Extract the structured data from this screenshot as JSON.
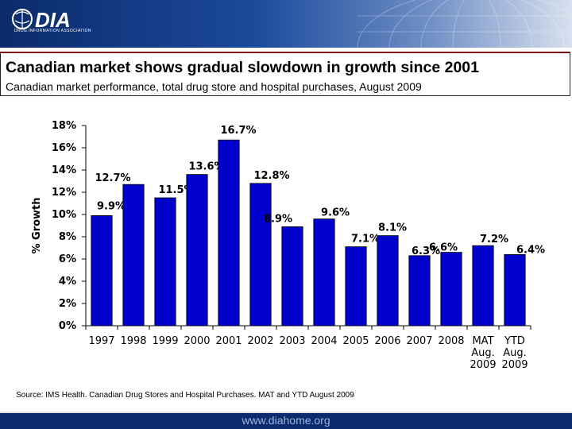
{
  "header": {
    "logo_text": "DIA",
    "logo_subtitle": "DRUG INFORMATION ASSOCIATION"
  },
  "title": "Canadian market shows gradual slowdown in growth since 2001",
  "subtitle": "Canadian market performance, total drug store and hospital purchases, August 2009",
  "source": "Source: IMS Health. Canadian Drug Stores and Hospital Purchases. MAT and YTD August 2009",
  "footer_url": "www.diahome.org",
  "colors": {
    "bar": "#0000cc",
    "header_dark": "#0b2a6b",
    "footer": "#0a2a6e"
  },
  "chart_data": {
    "type": "bar",
    "title": "",
    "xlabel": "",
    "ylabel": "% Growth",
    "ylim": [
      0,
      18
    ],
    "yticks": [
      0,
      2,
      4,
      6,
      8,
      10,
      12,
      14,
      16,
      18
    ],
    "ytick_labels": [
      "0%",
      "2%",
      "4%",
      "6%",
      "8%",
      "10%",
      "12%",
      "14%",
      "16%",
      "18%"
    ],
    "categories": [
      [
        "1997"
      ],
      [
        "1998"
      ],
      [
        "1999"
      ],
      [
        "2000"
      ],
      [
        "2001"
      ],
      [
        "2002"
      ],
      [
        "2003"
      ],
      [
        "2004"
      ],
      [
        "2005"
      ],
      [
        "2006"
      ],
      [
        "2007"
      ],
      [
        "2008"
      ],
      [
        "MAT",
        "Aug.",
        "2009"
      ],
      [
        "YTD",
        "Aug.",
        "2009"
      ]
    ],
    "values": [
      9.9,
      12.7,
      11.5,
      13.6,
      16.7,
      12.8,
      8.9,
      9.6,
      7.1,
      8.1,
      6.3,
      6.6,
      7.2,
      6.4
    ],
    "value_labels": [
      "9.9%",
      "12.7%",
      "11.5%",
      "13.6%",
      "16.7%",
      "12.8%",
      "8.9%",
      "9.6%",
      "7.1%",
      "8.1%",
      "6.3%",
      "6.6%",
      "7.2%",
      "6.4%"
    ],
    "grid": false
  }
}
